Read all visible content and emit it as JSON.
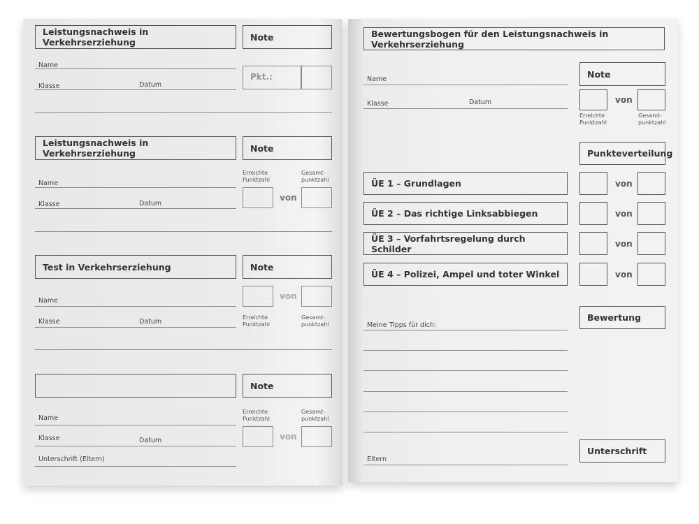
{
  "left_page": {
    "sections": [
      {
        "title": "Leistungsnachweis in Verkehrserziehung",
        "note": "Note",
        "name": "Name",
        "klasse": "Klasse",
        "datum": "Datum",
        "pkt": "Pkt.:"
      },
      {
        "title": "Leistungsnachweis in Verkehrserziehung",
        "note": "Note",
        "name": "Name",
        "klasse": "Klasse",
        "datum": "Datum",
        "reached": "Erreichte Punktzahl",
        "total": "Gesamt- punktzahl",
        "von": "von"
      },
      {
        "title": "Test in Verkehrserziehung",
        "note": "Note",
        "name": "Name",
        "klasse": "Klasse",
        "datum": "Datum",
        "reached": "Erreichte Punktzahl",
        "total": "Gesamt- punktzahl",
        "von": "von"
      },
      {
        "title": "",
        "note": "Note",
        "name": "Name",
        "klasse": "Klasse",
        "datum": "Datum",
        "signature": "Unterschrift (Eltern)",
        "reached": "Erreichte Punktzahl",
        "total": "Gesamt- punktzahl",
        "von": "von"
      }
    ]
  },
  "right_page": {
    "title": "Bewertungsbogen für den Leistungsnachweis in Verkehrserziehung",
    "name": "Name",
    "klasse": "Klasse",
    "datum": "Datum",
    "note": "Note",
    "von": "von",
    "reached": "Erreichte Punktzahl",
    "total": "Gesamt- punktzahl",
    "distribution": "Punkteverteilung",
    "exercises": [
      "ÜE 1 – Grundlagen",
      "ÜE 2 – Das richtige Linksabbiegen",
      "ÜE 3 – Vorfahrtsregelung durch Schilder",
      "ÜE 4 – Polizei, Ampel und toter Winkel"
    ],
    "rating": "Bewertung",
    "tips": "Meine Tipps für dich:",
    "parents": "Eltern",
    "signature": "Unterschrift"
  }
}
